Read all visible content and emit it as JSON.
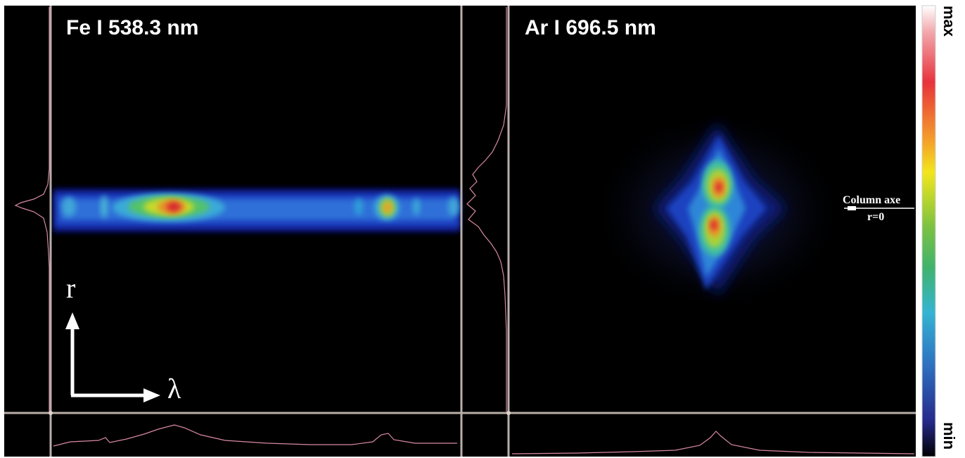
{
  "panels": {
    "left": {
      "title": "Fe I  538.3 nm"
    },
    "right": {
      "title": "Ar I  696.5 nm"
    }
  },
  "axes": {
    "r_label": "r",
    "lambda_label": "λ"
  },
  "annotation": {
    "column_label": "Column axe",
    "r0_label": "r=0"
  },
  "colorbar": {
    "max_label": "max",
    "min_label": "min",
    "colors": [
      "#ffffff",
      "#f2a6aa",
      "#e8323c",
      "#f4a02a",
      "#f2e61c",
      "#7cc242",
      "#41b36c",
      "#34b4d2",
      "#2e6fc0",
      "#262a8c",
      "#000000"
    ]
  }
}
